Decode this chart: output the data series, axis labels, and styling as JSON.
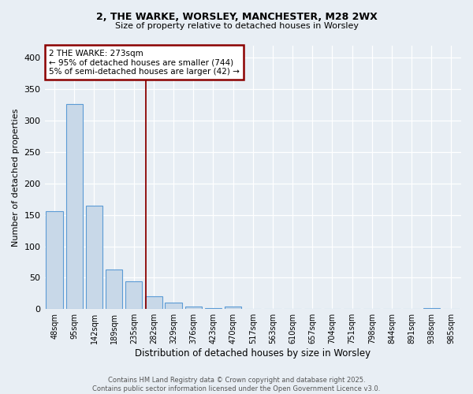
{
  "title1": "2, THE WARKE, WORSLEY, MANCHESTER, M28 2WX",
  "title2": "Size of property relative to detached houses in Worsley",
  "xlabel": "Distribution of detached houses by size in Worsley",
  "ylabel": "Number of detached properties",
  "bins": [
    "48sqm",
    "95sqm",
    "142sqm",
    "189sqm",
    "235sqm",
    "282sqm",
    "329sqm",
    "376sqm",
    "423sqm",
    "470sqm",
    "517sqm",
    "563sqm",
    "610sqm",
    "657sqm",
    "704sqm",
    "751sqm",
    "798sqm",
    "844sqm",
    "891sqm",
    "938sqm",
    "985sqm"
  ],
  "values": [
    156,
    326,
    165,
    63,
    44,
    20,
    10,
    4,
    1,
    4,
    0,
    0,
    0,
    0,
    0,
    0,
    0,
    0,
    0,
    2,
    0
  ],
  "bar_color": "#c8d8e8",
  "bar_edge_color": "#5b9bd5",
  "vline_color": "#8b0000",
  "annotation_line1": "2 THE WARKE: 273sqm",
  "annotation_line2": "← 95% of detached houses are smaller (744)",
  "annotation_line3": "5% of semi-detached houses are larger (42) →",
  "annotation_box_color": "#8b0000",
  "footer1": "Contains HM Land Registry data © Crown copyright and database right 2025.",
  "footer2": "Contains public sector information licensed under the Open Government Licence v3.0.",
  "ylim": [
    0,
    420
  ],
  "yticks": [
    0,
    50,
    100,
    150,
    200,
    250,
    300,
    350,
    400
  ],
  "background_color": "#e8eef4",
  "figsize": [
    6.0,
    5.0
  ],
  "dpi": 100
}
